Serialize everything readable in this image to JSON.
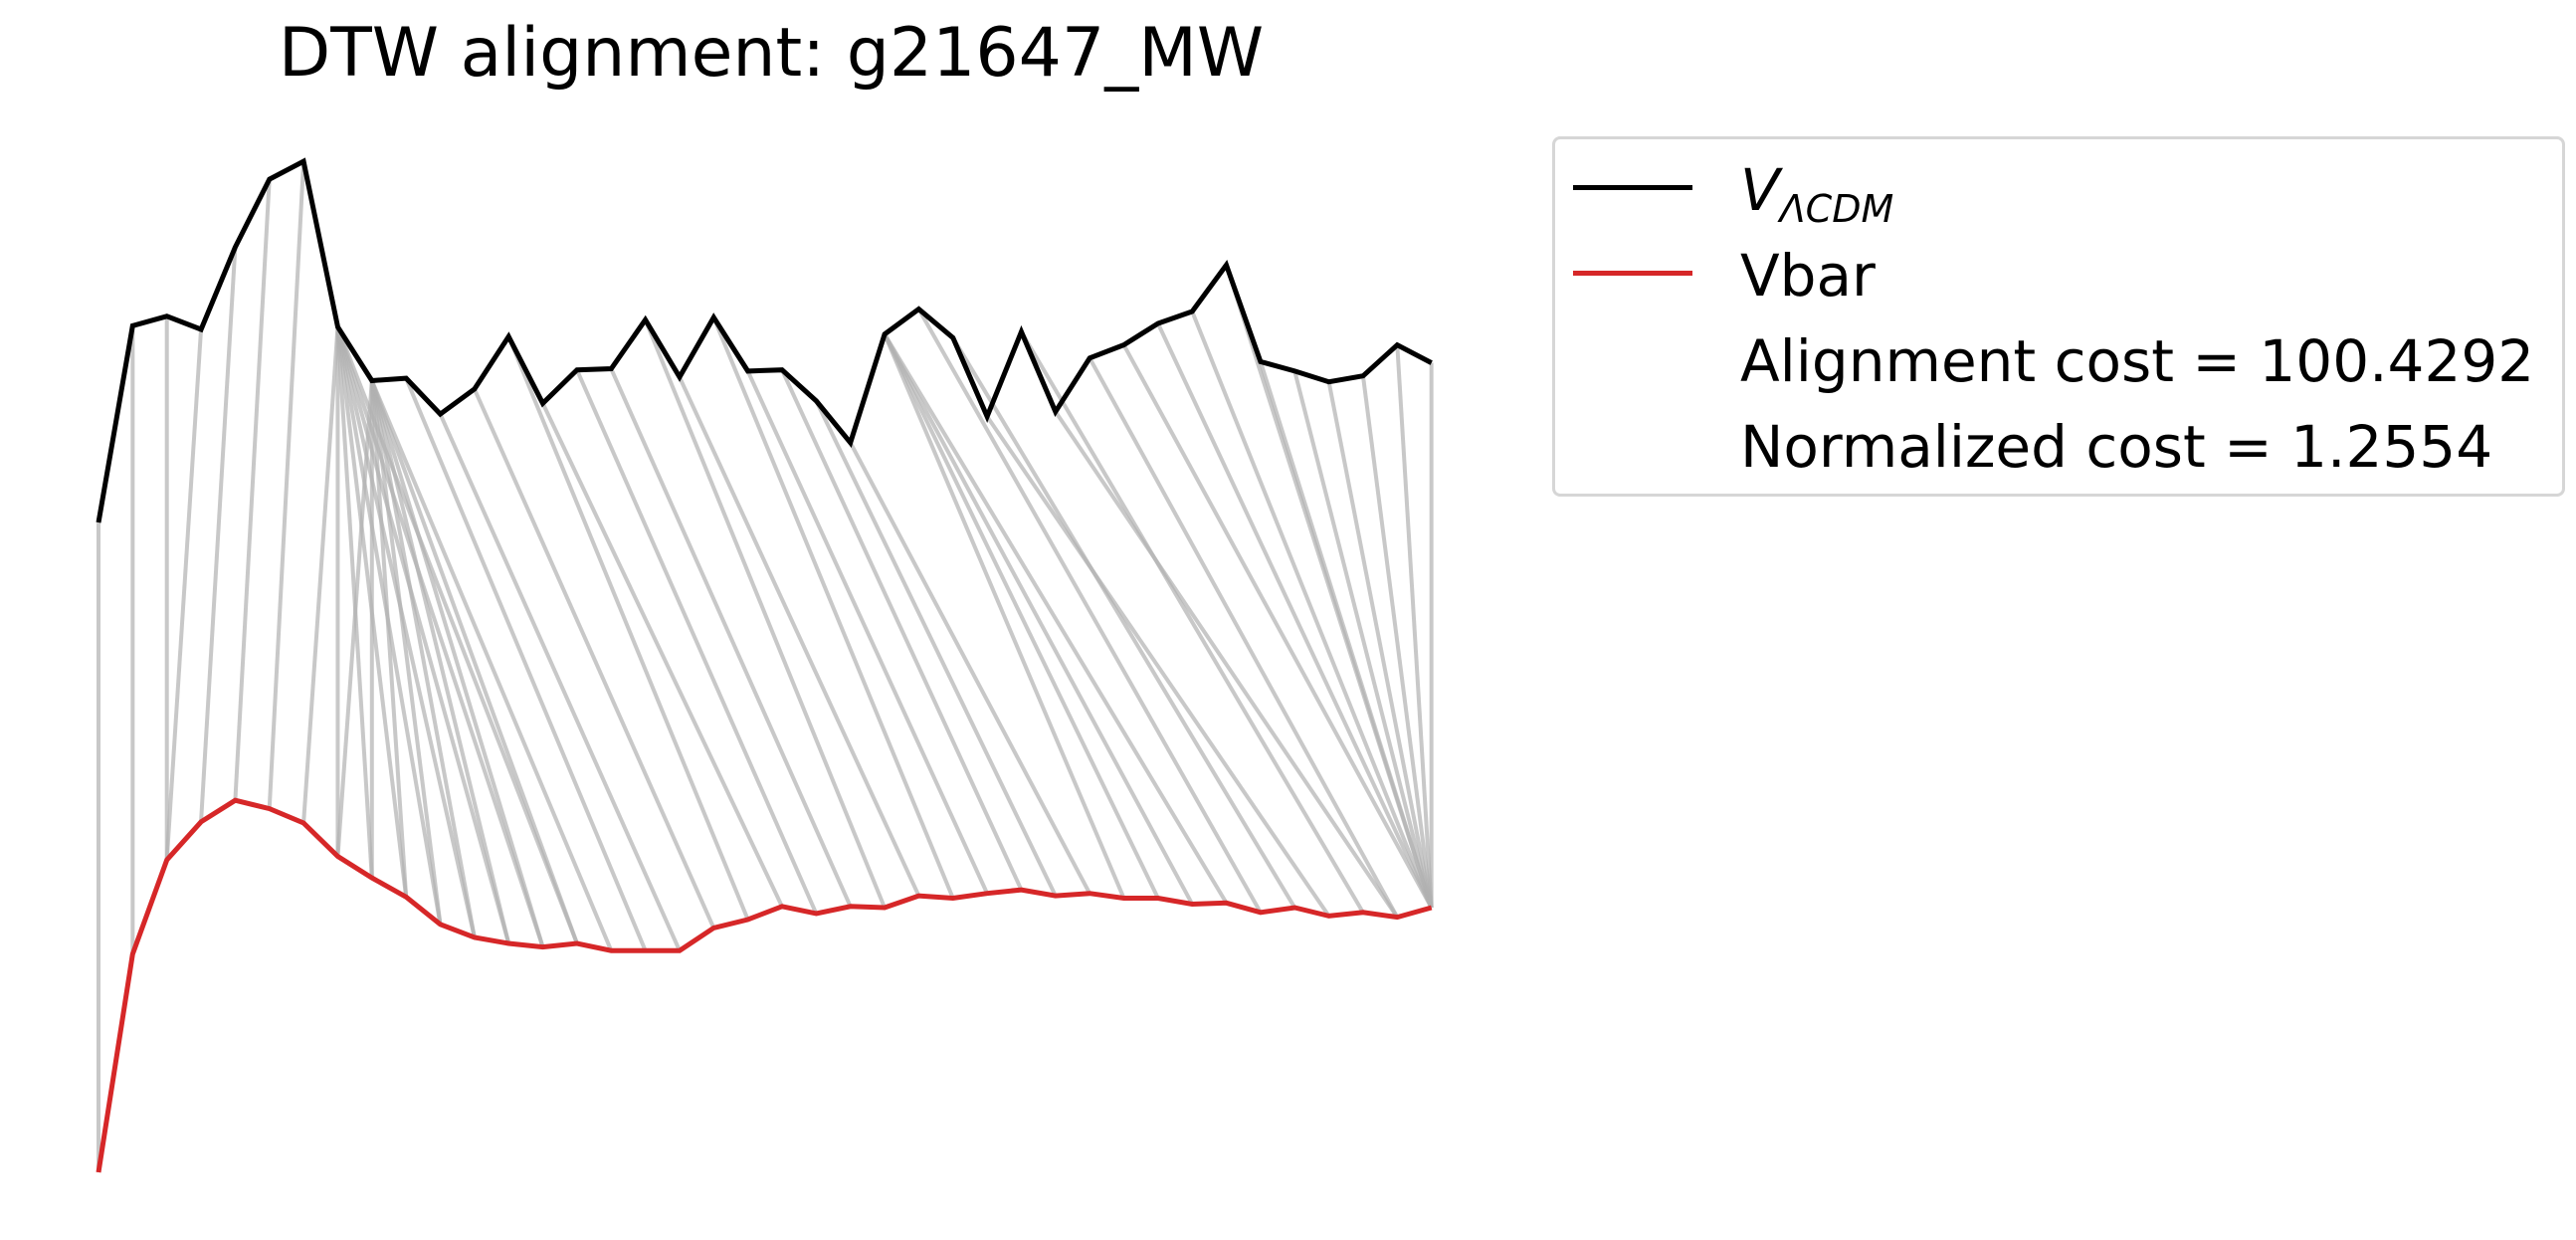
{
  "chart_data": {
    "type": "line",
    "title": "DTW alignment: g21647_MW",
    "xlabel": "",
    "ylabel": "",
    "axes_visible": false,
    "grid": false,
    "legend_placement": "outside-right",
    "series": [
      {
        "name": "V_ΛCDM",
        "color": "#000000",
        "values": [
          0.545,
          0.71,
          0.718,
          0.707,
          0.776,
          0.833,
          0.848,
          0.709,
          0.664,
          0.666,
          0.636,
          0.657,
          0.701,
          0.645,
          0.673,
          0.674,
          0.715,
          0.667,
          0.717,
          0.672,
          0.673,
          0.647,
          0.612,
          0.703,
          0.724,
          0.7,
          0.634,
          0.705,
          0.638,
          0.683,
          0.694,
          0.712,
          0.722,
          0.761,
          0.68,
          0.672,
          0.663,
          0.668,
          0.694,
          0.679
        ]
      },
      {
        "name": "Vbar",
        "color": "#d62728",
        "values": [
          0.0,
          0.183,
          0.262,
          0.294,
          0.312,
          0.305,
          0.293,
          0.265,
          0.247,
          0.231,
          0.208,
          0.197,
          0.192,
          0.189,
          0.192,
          0.186,
          0.186,
          0.186,
          0.205,
          0.212,
          0.223,
          0.217,
          0.223,
          0.222,
          0.232,
          0.23,
          0.234,
          0.237,
          0.232,
          0.234,
          0.23,
          0.23,
          0.225,
          0.226,
          0.218,
          0.222,
          0.215,
          0.218,
          0.214,
          0.222
        ]
      }
    ],
    "alignment_pairs": [
      [
        0,
        0
      ],
      [
        1,
        1
      ],
      [
        2,
        2
      ],
      [
        3,
        2
      ],
      [
        4,
        3
      ],
      [
        5,
        4
      ],
      [
        6,
        5
      ],
      [
        7,
        6
      ],
      [
        7,
        7
      ],
      [
        7,
        8
      ],
      [
        7,
        9
      ],
      [
        7,
        10
      ],
      [
        7,
        11
      ],
      [
        7,
        12
      ],
      [
        7,
        13
      ],
      [
        7,
        14
      ],
      [
        8,
        7
      ],
      [
        8,
        8
      ],
      [
        8,
        9
      ],
      [
        8,
        10
      ],
      [
        8,
        11
      ],
      [
        8,
        12
      ],
      [
        8,
        13
      ],
      [
        8,
        14
      ],
      [
        8,
        15
      ],
      [
        9,
        16
      ],
      [
        10,
        17
      ],
      [
        11,
        18
      ],
      [
        12,
        19
      ],
      [
        13,
        20
      ],
      [
        14,
        21
      ],
      [
        15,
        22
      ],
      [
        16,
        23
      ],
      [
        17,
        24
      ],
      [
        18,
        25
      ],
      [
        19,
        26
      ],
      [
        20,
        27
      ],
      [
        21,
        28
      ],
      [
        22,
        29
      ],
      [
        23,
        30
      ],
      [
        23,
        31
      ],
      [
        23,
        32
      ],
      [
        23,
        33
      ],
      [
        24,
        34
      ],
      [
        25,
        35
      ],
      [
        26,
        36
      ],
      [
        27,
        37
      ],
      [
        28,
        38
      ],
      [
        29,
        38
      ],
      [
        30,
        39
      ],
      [
        31,
        39
      ],
      [
        32,
        39
      ],
      [
        33,
        39
      ],
      [
        34,
        39
      ],
      [
        35,
        39
      ],
      [
        36,
        39
      ],
      [
        37,
        39
      ],
      [
        38,
        39
      ],
      [
        39,
        39
      ]
    ],
    "legend": {
      "entries": [
        {
          "label_main": "V",
          "label_sub": "ΛCDM",
          "color": "#000000"
        },
        {
          "label": "Vbar",
          "color": "#d62728"
        },
        {
          "label": "Alignment cost = 100.4292"
        },
        {
          "label": "Normalized cost = 1.2554"
        }
      ]
    },
    "alignment_cost": 100.4292,
    "normalized_cost": 1.2554
  }
}
